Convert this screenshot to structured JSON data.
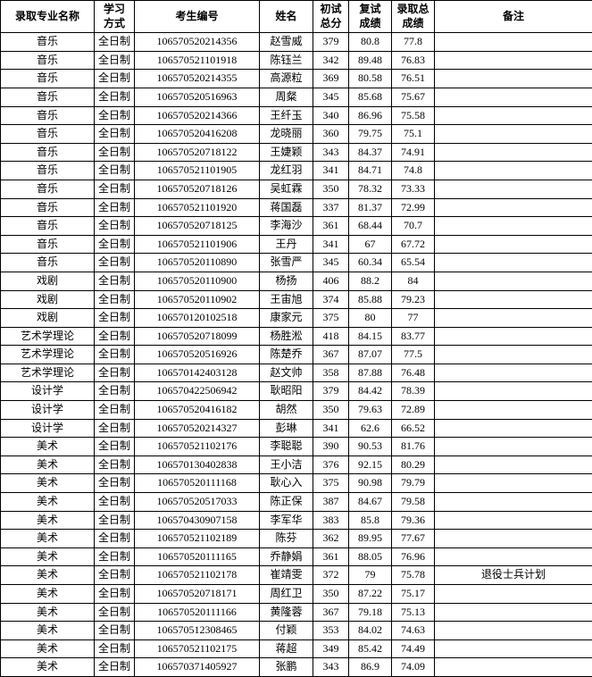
{
  "table": {
    "headers": {
      "major": "录取专业名称",
      "mode": "学习\n方式",
      "id": "考生编号",
      "name": "姓名",
      "score1": "初试\n总分",
      "score2": "复试\n成绩",
      "score3": "录取总\n成绩",
      "remark": "备注"
    },
    "rows": [
      {
        "major": "音乐",
        "mode": "全日制",
        "id": "106570520214356",
        "name": "赵雪威",
        "s1": "379",
        "s2": "80.8",
        "s3": "77.8",
        "remark": ""
      },
      {
        "major": "音乐",
        "mode": "全日制",
        "id": "106570521101918",
        "name": "陈钰兰",
        "s1": "342",
        "s2": "89.48",
        "s3": "76.83",
        "remark": ""
      },
      {
        "major": "音乐",
        "mode": "全日制",
        "id": "106570520214355",
        "name": "高源粒",
        "s1": "369",
        "s2": "80.58",
        "s3": "76.51",
        "remark": ""
      },
      {
        "major": "音乐",
        "mode": "全日制",
        "id": "106570520516963",
        "name": "周粲",
        "s1": "345",
        "s2": "85.68",
        "s3": "75.67",
        "remark": ""
      },
      {
        "major": "音乐",
        "mode": "全日制",
        "id": "106570520214366",
        "name": "王纤玉",
        "s1": "340",
        "s2": "86.96",
        "s3": "75.58",
        "remark": ""
      },
      {
        "major": "音乐",
        "mode": "全日制",
        "id": "106570520416208",
        "name": "龙晓丽",
        "s1": "360",
        "s2": "79.75",
        "s3": "75.1",
        "remark": ""
      },
      {
        "major": "音乐",
        "mode": "全日制",
        "id": "106570520718122",
        "name": "王婕颖",
        "s1": "343",
        "s2": "84.37",
        "s3": "74.91",
        "remark": ""
      },
      {
        "major": "音乐",
        "mode": "全日制",
        "id": "106570521101905",
        "name": "龙红羽",
        "s1": "341",
        "s2": "84.71",
        "s3": "74.8",
        "remark": ""
      },
      {
        "major": "音乐",
        "mode": "全日制",
        "id": "106570520718126",
        "name": "吴虹霖",
        "s1": "350",
        "s2": "78.32",
        "s3": "73.33",
        "remark": ""
      },
      {
        "major": "音乐",
        "mode": "全日制",
        "id": "106570521101920",
        "name": "蒋国磊",
        "s1": "337",
        "s2": "81.37",
        "s3": "72.99",
        "remark": ""
      },
      {
        "major": "音乐",
        "mode": "全日制",
        "id": "106570520718125",
        "name": "李海沙",
        "s1": "361",
        "s2": "68.44",
        "s3": "70.7",
        "remark": ""
      },
      {
        "major": "音乐",
        "mode": "全日制",
        "id": "106570521101906",
        "name": "王丹",
        "s1": "341",
        "s2": "67",
        "s3": "67.72",
        "remark": ""
      },
      {
        "major": "音乐",
        "mode": "全日制",
        "id": "106570520110890",
        "name": "张雪严",
        "s1": "345",
        "s2": "60.34",
        "s3": "65.54",
        "remark": ""
      },
      {
        "major": "戏剧",
        "mode": "全日制",
        "id": "106570520110900",
        "name": "杨扬",
        "s1": "406",
        "s2": "88.2",
        "s3": "84",
        "remark": ""
      },
      {
        "major": "戏剧",
        "mode": "全日制",
        "id": "106570520110902",
        "name": "王宙旭",
        "s1": "374",
        "s2": "85.88",
        "s3": "79.23",
        "remark": ""
      },
      {
        "major": "戏剧",
        "mode": "全日制",
        "id": "106570120102518",
        "name": "康家元",
        "s1": "375",
        "s2": "80",
        "s3": "77",
        "remark": ""
      },
      {
        "major": "艺术学理论",
        "mode": "全日制",
        "id": "106570520718099",
        "name": "杨胜淞",
        "s1": "418",
        "s2": "84.15",
        "s3": "83.77",
        "remark": ""
      },
      {
        "major": "艺术学理论",
        "mode": "全日制",
        "id": "106570520516926",
        "name": "陈楚乔",
        "s1": "367",
        "s2": "87.07",
        "s3": "77.5",
        "remark": ""
      },
      {
        "major": "艺术学理论",
        "mode": "全日制",
        "id": "106570142403128",
        "name": "赵文帅",
        "s1": "358",
        "s2": "87.88",
        "s3": "76.48",
        "remark": ""
      },
      {
        "major": "设计学",
        "mode": "全日制",
        "id": "106570422506942",
        "name": "耿昭阳",
        "s1": "379",
        "s2": "84.42",
        "s3": "78.39",
        "remark": ""
      },
      {
        "major": "设计学",
        "mode": "全日制",
        "id": "106570520416182",
        "name": "胡然",
        "s1": "350",
        "s2": "79.63",
        "s3": "72.89",
        "remark": ""
      },
      {
        "major": "设计学",
        "mode": "全日制",
        "id": "106570520214327",
        "name": "彭琳",
        "s1": "341",
        "s2": "62.6",
        "s3": "66.52",
        "remark": ""
      },
      {
        "major": "美术",
        "mode": "全日制",
        "id": "106570521102176",
        "name": "李聪聪",
        "s1": "390",
        "s2": "90.53",
        "s3": "81.76",
        "remark": ""
      },
      {
        "major": "美术",
        "mode": "全日制",
        "id": "106570130402838",
        "name": "王小洁",
        "s1": "376",
        "s2": "92.15",
        "s3": "80.29",
        "remark": ""
      },
      {
        "major": "美术",
        "mode": "全日制",
        "id": "106570520111168",
        "name": "耿心入",
        "s1": "375",
        "s2": "90.98",
        "s3": "79.79",
        "remark": ""
      },
      {
        "major": "美术",
        "mode": "全日制",
        "id": "106570520517033",
        "name": "陈正保",
        "s1": "387",
        "s2": "84.67",
        "s3": "79.58",
        "remark": ""
      },
      {
        "major": "美术",
        "mode": "全日制",
        "id": "106570430907158",
        "name": "李军华",
        "s1": "383",
        "s2": "85.8",
        "s3": "79.36",
        "remark": ""
      },
      {
        "major": "美术",
        "mode": "全日制",
        "id": "106570521102189",
        "name": "陈芬",
        "s1": "362",
        "s2": "89.95",
        "s3": "77.67",
        "remark": ""
      },
      {
        "major": "美术",
        "mode": "全日制",
        "id": "106570520111165",
        "name": "乔静娟",
        "s1": "361",
        "s2": "88.05",
        "s3": "76.96",
        "remark": ""
      },
      {
        "major": "美术",
        "mode": "全日制",
        "id": "106570521102178",
        "name": "崔靖雯",
        "s1": "372",
        "s2": "79",
        "s3": "75.78",
        "remark": "退役士兵计划"
      },
      {
        "major": "美术",
        "mode": "全日制",
        "id": "106570520718171",
        "name": "周红卫",
        "s1": "350",
        "s2": "87.22",
        "s3": "75.17",
        "remark": ""
      },
      {
        "major": "美术",
        "mode": "全日制",
        "id": "106570520111166",
        "name": "黄隆蓉",
        "s1": "367",
        "s2": "79.18",
        "s3": "75.13",
        "remark": ""
      },
      {
        "major": "美术",
        "mode": "全日制",
        "id": "106570512308465",
        "name": "付颖",
        "s1": "353",
        "s2": "84.02",
        "s3": "74.63",
        "remark": ""
      },
      {
        "major": "美术",
        "mode": "全日制",
        "id": "106570521102175",
        "name": "蒋超",
        "s1": "349",
        "s2": "85.42",
        "s3": "74.49",
        "remark": ""
      },
      {
        "major": "美术",
        "mode": "全日制",
        "id": "106570371405927",
        "name": "张鹏",
        "s1": "343",
        "s2": "86.9",
        "s3": "74.09",
        "remark": ""
      }
    ]
  },
  "colors": {
    "border": "#000000",
    "background": "#ffffff",
    "text": "#000000"
  }
}
